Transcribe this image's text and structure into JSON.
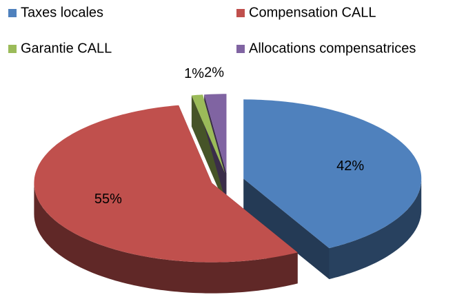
{
  "chart_data": {
    "type": "pie",
    "categories": [
      "Taxes locales",
      "Compensation CALL",
      "Garantie CALL",
      "Allocations compensatrices"
    ],
    "values": [
      42,
      55,
      1,
      2
    ],
    "value_labels": [
      "42%",
      "55%",
      "1%",
      "2%"
    ],
    "colors": [
      "#4f81bd",
      "#c0504d",
      "#9bbb59",
      "#8064a2"
    ],
    "legend": "top",
    "exploded": true,
    "three_d": true
  }
}
